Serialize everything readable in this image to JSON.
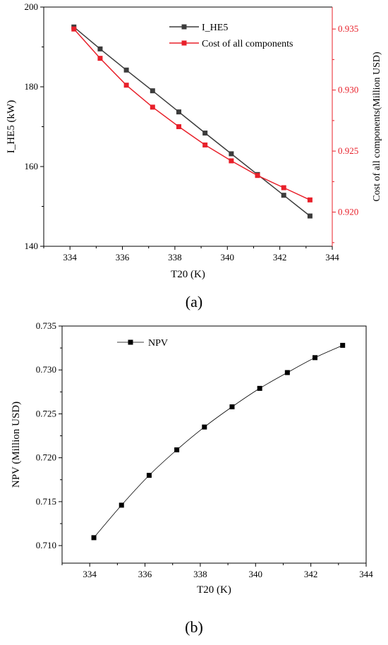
{
  "panel_labels": {
    "a": "(a)",
    "b": "(b)"
  },
  "chart_data": [
    {
      "type": "line",
      "panel": "a",
      "xlabel": "T20 (K)",
      "ylabel_left": "I_HE5 (kW)",
      "ylabel_right": "Cost of all components(Million USD)",
      "xlim": [
        333,
        344
      ],
      "xticks": [
        334,
        336,
        338,
        340,
        342,
        344
      ],
      "ylim_left": [
        140,
        200
      ],
      "yticks_left": [
        140,
        160,
        180,
        200
      ],
      "ylim_right": [
        0.9172,
        0.9368
      ],
      "yticks_right": [
        0.92,
        0.925,
        0.93,
        0.935
      ],
      "right_axis_color": "#e8202a",
      "legend_position": "top-center",
      "x": [
        334.15,
        335.15,
        336.15,
        337.15,
        338.15,
        339.15,
        340.15,
        341.15,
        342.15,
        343.15
      ],
      "series": [
        {
          "name": "I_HE5",
          "axis": "left",
          "color": "#3c3c3c",
          "values": [
            195.0,
            189.5,
            184.2,
            179.0,
            173.7,
            168.4,
            163.2,
            158.0,
            152.8,
            147.6
          ]
        },
        {
          "name": "Cost of all components",
          "axis": "right",
          "color": "#e8202a",
          "values": [
            0.935,
            0.9326,
            0.9304,
            0.9286,
            0.927,
            0.9255,
            0.9242,
            0.923,
            0.922,
            0.921
          ]
        }
      ]
    },
    {
      "type": "line",
      "panel": "b",
      "xlabel": "T20 (K)",
      "ylabel": "NPV (Million USD)",
      "xlim": [
        333,
        344
      ],
      "xticks": [
        334,
        336,
        338,
        340,
        342,
        344
      ],
      "ylim": [
        0.708,
        0.735
      ],
      "yticks": [
        0.71,
        0.715,
        0.72,
        0.725,
        0.73,
        0.735
      ],
      "legend_position": "top-left",
      "x": [
        334.15,
        335.15,
        336.15,
        337.15,
        338.15,
        339.15,
        340.15,
        341.15,
        342.15,
        343.15
      ],
      "series": [
        {
          "name": "NPV",
          "color": "#000000",
          "values": [
            0.7109,
            0.7146,
            0.718,
            0.7209,
            0.7235,
            0.7258,
            0.7279,
            0.7297,
            0.7314,
            0.7328
          ]
        }
      ]
    }
  ]
}
